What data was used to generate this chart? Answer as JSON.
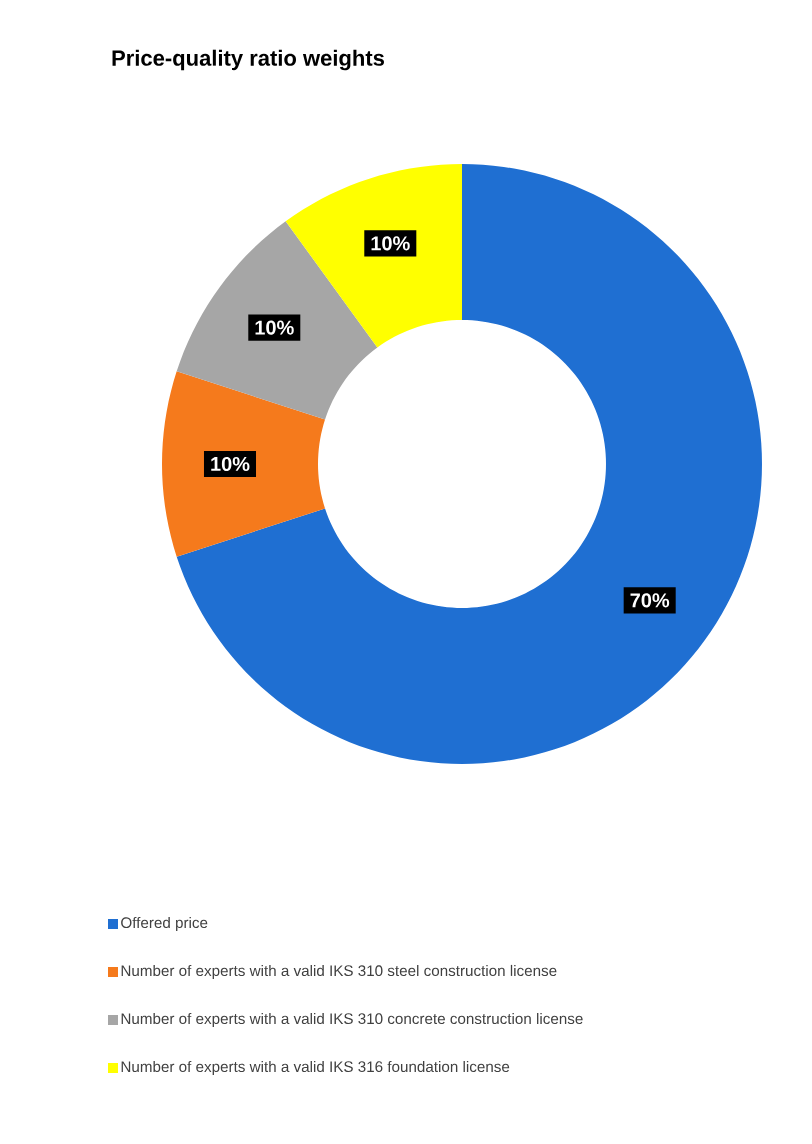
{
  "chart_data": {
    "type": "donut",
    "title": "Price-quality ratio weights",
    "categories": [
      "Offered price",
      "Number of experts with a valid IKS 310 steel construction license",
      "Number of experts with a valid IKS 310 concrete construction license",
      "Number of experts with a valid IKS 316 foundation license"
    ],
    "values": [
      70,
      10,
      10,
      10
    ],
    "colors": [
      "#1f6fd2",
      "#f57a1c",
      "#a6a6a6",
      "#ffff00"
    ],
    "value_labels": [
      "70%",
      "10%",
      "10%",
      "10%"
    ],
    "legend": "bottom"
  }
}
